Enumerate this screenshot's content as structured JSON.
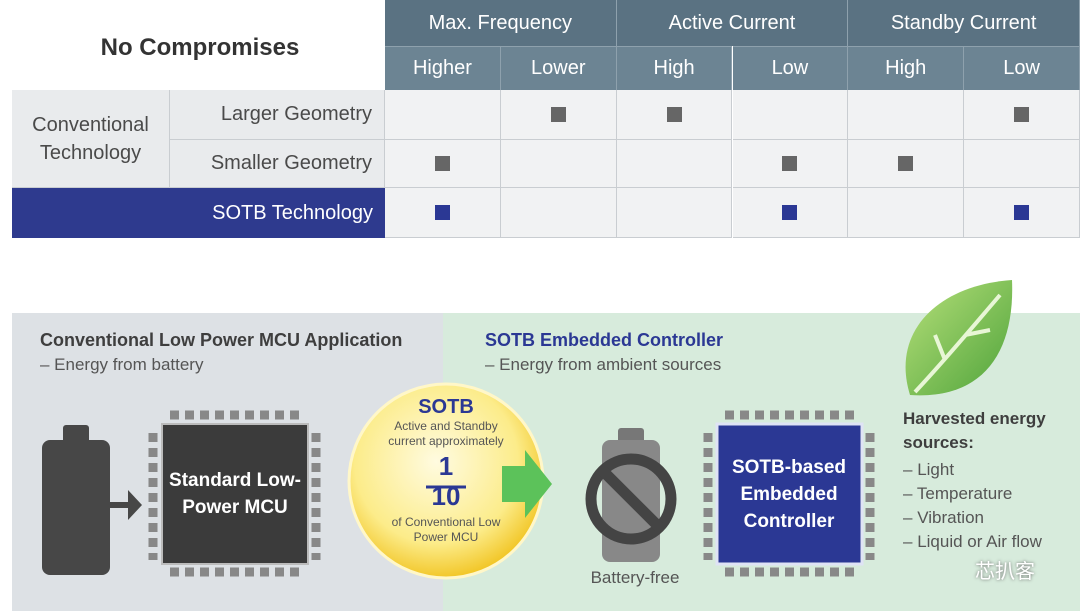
{
  "table": {
    "title": "No Compromises",
    "groups": [
      "Max. Frequency",
      "Active Current",
      "Standby Current"
    ],
    "subheaders": [
      "Higher",
      "Lower",
      "High",
      "Low",
      "High",
      "Low"
    ],
    "row_group": "Conventional Technology",
    "rows": [
      {
        "label": "Larger Geometry",
        "marks": [
          false,
          true,
          true,
          false,
          false,
          true
        ]
      },
      {
        "label": "Smaller Geometry",
        "marks": [
          true,
          false,
          false,
          true,
          true,
          false
        ]
      },
      {
        "label": "SOTB Technology",
        "marks": [
          true,
          false,
          false,
          true,
          false,
          true
        ]
      }
    ]
  },
  "conventional": {
    "title": "Conventional Low Power MCU Application",
    "subtitle": "– Energy from battery",
    "chip": "Standard Low-Power MCU"
  },
  "badge": {
    "title": "SOTB",
    "text": "Active and Standby current approximately",
    "numerator": "1",
    "denominator": "10",
    "footer": "of Conventional Low Power MCU"
  },
  "sotb": {
    "title": "SOTB Embedded Controller",
    "subtitle": "– Energy from ambient sources",
    "battery_label": "Battery-free",
    "chip": "SOTB-based Embedded Controller",
    "sources_title": "Harvested energy sources:",
    "sources": [
      "Light",
      "Temperature",
      "Vibration",
      "Liquid or Air flow"
    ]
  },
  "watermark": "芯扒客"
}
